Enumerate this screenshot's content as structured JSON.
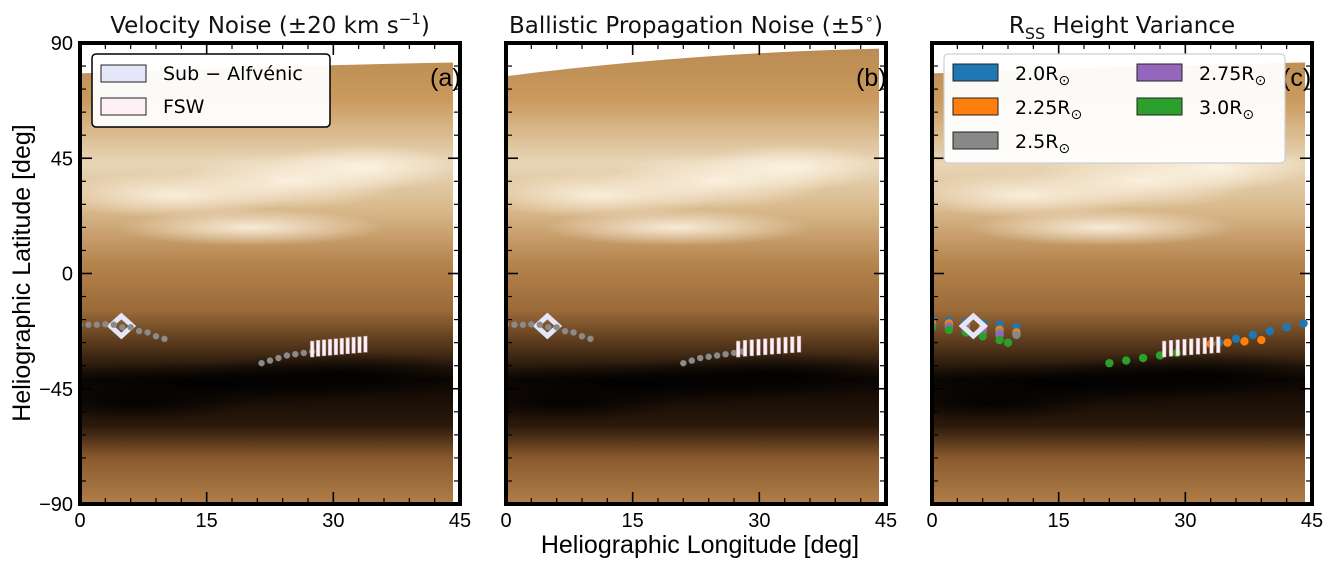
{
  "figure": {
    "ylabel": "Heliographic Latitude [deg]",
    "xlabel": "Heliographic Longitude [deg]"
  },
  "colors": {
    "sub_alfvenic": "#e6e6fa",
    "fsw": "#fff0f5",
    "gray_track": "#8a8a8a",
    "rss_2_0": "#1f77b4",
    "rss_2_25": "#ff7f0e",
    "rss_2_5": "#888888",
    "rss_2_75": "#9467bd",
    "rss_3_0": "#2ca02c"
  },
  "chart_data": [
    {
      "type": "scatter",
      "title_main": "Velocity Noise (±20 km s",
      "title_sup": "−1",
      "title_end": ")",
      "panel_label": "(a)",
      "xlim": [
        0,
        45
      ],
      "ylim": [
        -90,
        90
      ],
      "xticks": [
        "0",
        "15",
        "30",
        "45"
      ],
      "yticks": [
        "90",
        "45",
        "0",
        "−45",
        "−90"
      ],
      "background": "synoptic map",
      "legend": {
        "position": "top-left",
        "entries": [
          "Sub − Alfvénic",
          "FSW"
        ]
      },
      "series": [
        {
          "name": "Sub − Alfvénic",
          "color": "sub_alfvenic",
          "marker": "diamond",
          "x": [
            4.9
          ],
          "y": [
            -20.5
          ]
        },
        {
          "name": "",
          "color": "gray_track",
          "marker": "dot",
          "x": [
            0,
            1,
            2,
            3,
            4,
            5,
            6,
            7,
            8,
            9,
            10
          ],
          "y": [
            -20,
            -20,
            -20,
            -19.8,
            -20,
            -21,
            -21,
            -22.5,
            -23,
            -24.5,
            -25.5
          ]
        },
        {
          "name": "",
          "color": "gray_track",
          "marker": "dot",
          "x": [
            21.5,
            22.5,
            23.5,
            24.5,
            25.5,
            26.5,
            27.5
          ],
          "y": [
            -35,
            -34,
            -33,
            -32,
            -31.5,
            -31,
            -30.5
          ]
        },
        {
          "name": "FSW",
          "color": "fsw",
          "marker": "vbar",
          "x": [
            27.5,
            28.2,
            28.9,
            29.6,
            30.3,
            31.0,
            31.7,
            32.4,
            33.1,
            33.8
          ],
          "y": [
            -29.5,
            -29.2,
            -29.0,
            -28.8,
            -28.6,
            -28.4,
            -28.2,
            -28.0,
            -27.8,
            -27.6
          ]
        }
      ]
    },
    {
      "type": "scatter",
      "title_main": "Ballistic Propagation Noise (±5",
      "title_sup": "∘",
      "title_end": ")",
      "panel_label": "(b)",
      "xlim": [
        0,
        45
      ],
      "ylim": [
        -90,
        90
      ],
      "xticks": [
        "0",
        "15",
        "30",
        "45"
      ],
      "background": "synoptic map",
      "series": [
        {
          "name": "",
          "color": "sub_alfvenic",
          "marker": "diamond",
          "x": [
            4.9
          ],
          "y": [
            -20.5
          ]
        },
        {
          "name": "",
          "color": "gray_track",
          "marker": "dot",
          "x": [
            0,
            1,
            2,
            3,
            4,
            5,
            6,
            7,
            8,
            9,
            10
          ],
          "y": [
            -20,
            -20,
            -20,
            -19.8,
            -20,
            -21,
            -21,
            -22.5,
            -23,
            -24.5,
            -25.5
          ]
        },
        {
          "name": "",
          "color": "gray_track",
          "marker": "dot",
          "x": [
            21.0,
            22.0,
            23.0,
            24.0,
            25.0,
            26.0,
            27.0,
            28.0
          ],
          "y": [
            -35,
            -34,
            -33,
            -32.5,
            -32,
            -31.5,
            -31,
            -30.5
          ]
        },
        {
          "name": "",
          "color": "fsw",
          "marker": "vbar",
          "x": [
            27.5,
            28.3,
            29.1,
            29.9,
            30.7,
            31.5,
            32.3,
            33.1,
            33.9,
            34.7
          ],
          "y": [
            -29.5,
            -29.2,
            -29.0,
            -28.8,
            -28.6,
            -28.4,
            -28.2,
            -28.0,
            -27.8,
            -27.6
          ]
        }
      ]
    },
    {
      "type": "scatter",
      "title_main": "R",
      "title_sub": "SS",
      "title_end": " Height Variance",
      "panel_label": "(c)",
      "xlim": [
        0,
        45
      ],
      "ylim": [
        -90,
        90
      ],
      "xticks": [
        "0",
        "15",
        "30",
        "45"
      ],
      "background": "synoptic map",
      "legend": {
        "position": "top",
        "entries": [
          {
            "base": "2.0R",
            "sub": "⊙",
            "color": "rss_2_0"
          },
          {
            "base": "2.25R",
            "sub": "⊙",
            "color": "rss_2_25"
          },
          {
            "base": "2.5R",
            "sub": "⊙",
            "color": "rss_2_5"
          },
          {
            "base": "2.75R",
            "sub": "⊙",
            "color": "rss_2_75"
          },
          {
            "base": "3.0R",
            "sub": "⊙",
            "color": "rss_3_0"
          }
        ]
      },
      "series": [
        {
          "name": "2.0R⊙",
          "color": "rss_2_0",
          "marker": "dot",
          "x": [
            0,
            2,
            4,
            6,
            8,
            10,
            34,
            36,
            38,
            40,
            42,
            44
          ],
          "y": [
            -18,
            -18.5,
            -19,
            -19.5,
            -20,
            -21,
            -27,
            -25.5,
            -24,
            -22.5,
            -21,
            -19.5
          ]
        },
        {
          "name": "2.25R⊙",
          "color": "rss_2_25",
          "marker": "dot",
          "x": [
            0,
            2,
            4,
            6,
            8,
            10,
            33,
            35,
            37,
            39
          ],
          "y": [
            -19,
            -19.5,
            -20,
            -21,
            -22,
            -23,
            -27.5,
            -27,
            -26.5,
            -26
          ]
        },
        {
          "name": "2.5R⊙",
          "color": "rss_2_5",
          "marker": "dot",
          "x": [
            0,
            2,
            4,
            6,
            8,
            10
          ],
          "y": [
            -20,
            -20.5,
            -21,
            -22,
            -23,
            -24
          ]
        },
        {
          "name": "2.75R⊙",
          "color": "rss_2_75",
          "marker": "dot",
          "x": [
            0,
            2,
            4,
            6,
            8
          ],
          "y": [
            -20.5,
            -21,
            -22,
            -23,
            -24
          ]
        },
        {
          "name": "3.0R⊙",
          "color": "rss_3_0",
          "marker": "dot",
          "x": [
            0,
            2,
            4,
            6,
            8,
            9,
            21,
            23,
            25,
            27,
            29
          ],
          "y": [
            -21,
            -22,
            -23,
            -24.5,
            -26,
            -27,
            -35,
            -34,
            -33,
            -32,
            -31
          ]
        },
        {
          "name": "",
          "color": "sub_alfvenic",
          "marker": "diamond",
          "x": [
            4.9
          ],
          "y": [
            -20.5
          ]
        },
        {
          "name": "",
          "color": "fsw",
          "marker": "vbar",
          "x": [
            27.5,
            28.3,
            29.1,
            29.9,
            30.7,
            31.5,
            32.3,
            33.1,
            33.9
          ],
          "y": [
            -29.5,
            -29.2,
            -29.0,
            -28.8,
            -28.6,
            -28.4,
            -28.2,
            -28.0,
            -27.8
          ]
        }
      ]
    }
  ]
}
